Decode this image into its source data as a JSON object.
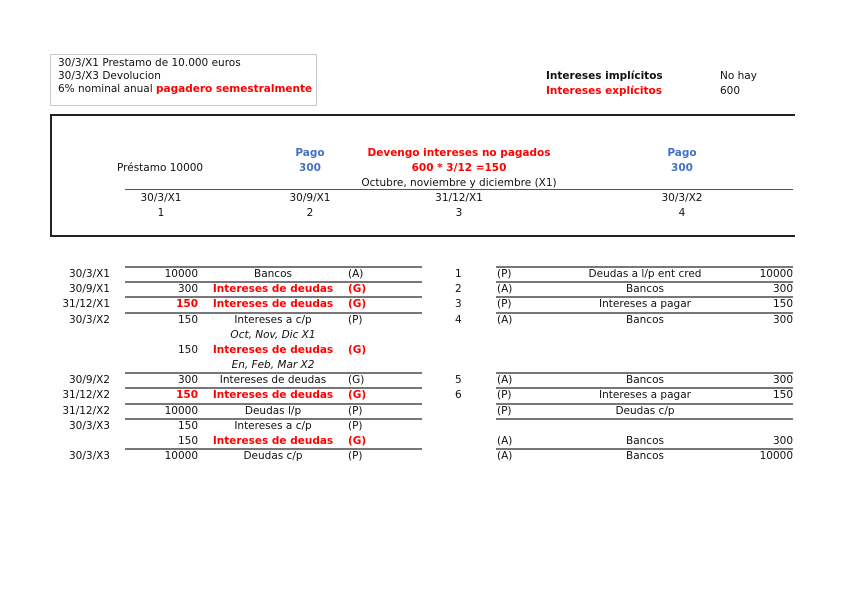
{
  "note": {
    "line1": "30/3/X1 Prestamo de 10.000 euros",
    "line2": "30/3/X3 Devolucion",
    "line3_prefix": "6% nominal anual ",
    "line3_red": "pagadero semestralmente"
  },
  "summary": {
    "implicit_label": "Intereses implícitos",
    "implicit_value": "No hay",
    "explicit_label": "Intereses explícitos",
    "explicit_value": "600"
  },
  "timeline": {
    "loan_label": "Préstamo 10000",
    "pago1_title": "Pago",
    "pago1_value": "300",
    "devengo_title": "Devengo intereses no pagados",
    "devengo_formula": "600 * 3/12 =150",
    "devengo_note": "Octubre, noviembre y diciembre (X1)",
    "pago2_title": "Pago",
    "pago2_value": "300",
    "points": [
      {
        "date": "30/3/X1",
        "n": "1"
      },
      {
        "date": "30/9/X1",
        "n": "2"
      },
      {
        "date": "31/12/X1",
        "n": "3"
      },
      {
        "date": "30/3/X2",
        "n": "4"
      }
    ]
  },
  "colors": {
    "red": "#ff0000",
    "blue": "#4472c4"
  },
  "journal": [
    {
      "date": "30/3/X1",
      "amount": "10000",
      "account": "Bancos",
      "type": "(A)",
      "n": "1",
      "r_type": "(P)",
      "r_account": "Deudas a l/p ent cred",
      "r_amount": "10000"
    },
    {
      "date": "30/9/X1",
      "amount": "300",
      "account": "Intereses de deudas",
      "type": "(G)",
      "red_acc": true,
      "n": "2",
      "r_type": "(A)",
      "r_account": "Bancos",
      "r_amount": "300"
    },
    {
      "date": "31/12/X1",
      "amount": "150",
      "account": "Intereses de deudas",
      "type": "(G)",
      "red_acc": true,
      "red_amt": true,
      "n": "3",
      "r_type": "(P)",
      "r_account": "Intereses a pagar",
      "r_amount": "150"
    },
    {
      "date": "30/3/X2",
      "amount": "150",
      "account": "Intereses a c/p",
      "type": "(P)",
      "n": "4",
      "r_type": "(A)",
      "r_account": "Bancos",
      "r_amount": "300"
    },
    {
      "account": "Oct, Nov, Dic X1",
      "italic": true
    },
    {
      "amount": "150",
      "account": "Intereses de deudas",
      "type": "(G)",
      "red_acc": true
    },
    {
      "account": "En, Feb, Mar X2",
      "italic": true
    },
    {
      "date": "30/9/X2",
      "amount": "300",
      "account": "Intereses de deudas",
      "type": "(G)",
      "n": "5",
      "r_type": "(A)",
      "r_account": "Bancos",
      "r_amount": "300"
    },
    {
      "date": "31/12/X2",
      "amount": "150",
      "account": "Intereses de deudas",
      "type": "(G)",
      "red_acc": true,
      "red_amt": true,
      "n": "6",
      "r_type": "(P)",
      "r_account": "Intereses a pagar",
      "r_amount": "150"
    },
    {
      "date": "31/12/X2",
      "amount": "10000",
      "account": "Deudas l/p",
      "type": "(P)",
      "r_type": "(P)",
      "r_account": "Deudas c/p"
    },
    {
      "date": "30/3/X3",
      "amount": "150",
      "account": "Intereses a c/p",
      "type": "(P)"
    },
    {
      "amount": "150",
      "account": "Intereses de deudas",
      "type": "(G)",
      "red_acc": true,
      "r_type": "(A)",
      "r_account": "Bancos",
      "r_amount": "300"
    },
    {
      "date": "30/3/X3",
      "amount": "10000",
      "account": "Deudas c/p",
      "type": "(P)",
      "r_type": "(A)",
      "r_account": "Bancos",
      "r_amount": "10000"
    }
  ]
}
